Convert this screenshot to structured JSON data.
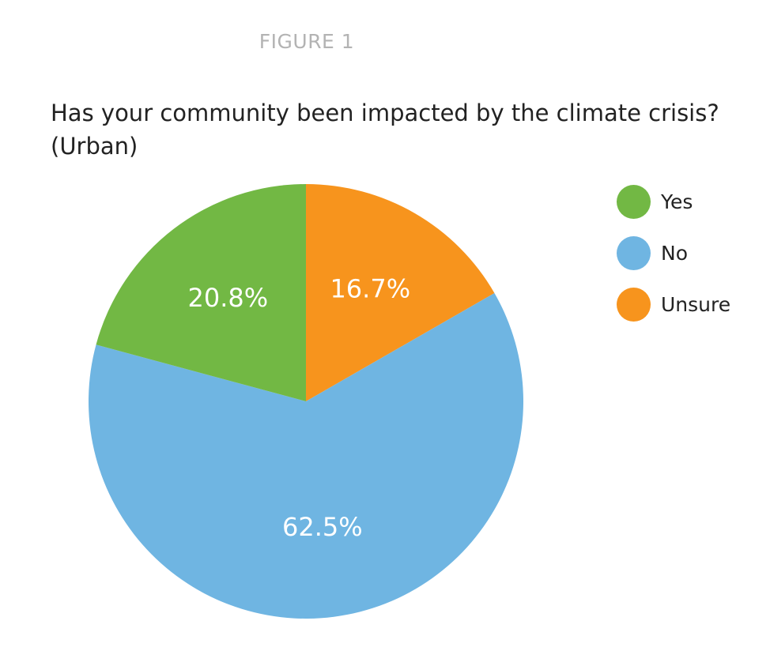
{
  "figure_label": "FIGURE 1",
  "chart_data": {
    "type": "pie",
    "title": "Has your community been impacted by the climate crisis?",
    "subtitle": "(Urban)",
    "slices": [
      {
        "label": "Unsure",
        "value": 16.7,
        "display": "16.7%",
        "color": "#f7941d"
      },
      {
        "label": "No",
        "value": 62.5,
        "display": "62.5%",
        "color": "#6fb5e2"
      },
      {
        "label": "Yes",
        "value": 20.8,
        "display": "20.8%",
        "color": "#72b844"
      }
    ],
    "legend": {
      "placement": "right",
      "items": [
        {
          "label": "Yes",
          "color": "#72b844"
        },
        {
          "label": "No",
          "color": "#6fb5e2"
        },
        {
          "label": "Unsure",
          "color": "#f7941d"
        }
      ]
    }
  }
}
